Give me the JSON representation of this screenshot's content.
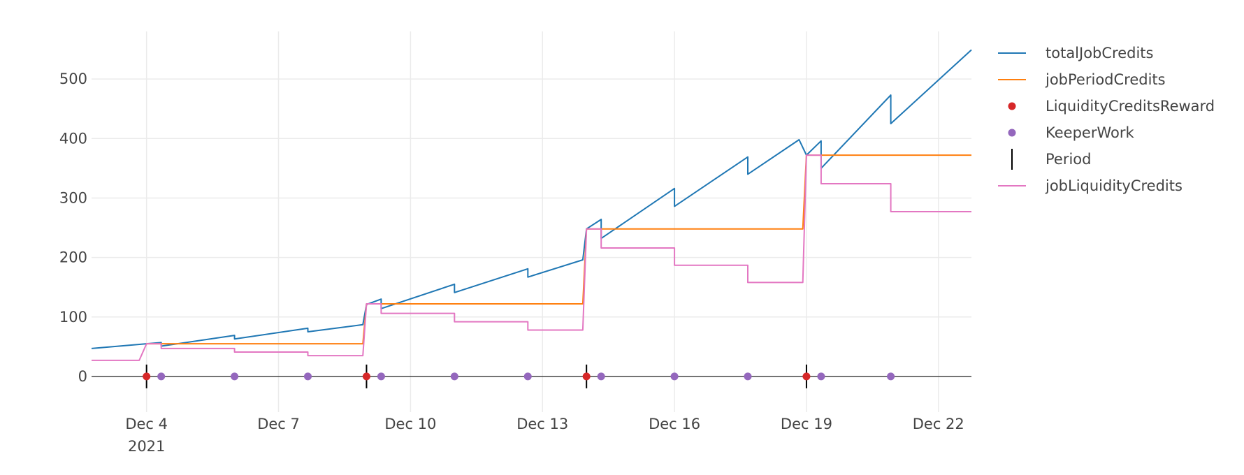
{
  "chart_data": {
    "type": "line",
    "x_axis": {
      "type": "date",
      "range": [
        "2021-12-02T18:00",
        "2021-12-22T18:00"
      ],
      "tick_values": [
        "2021-12-04",
        "2021-12-07",
        "2021-12-10",
        "2021-12-13",
        "2021-12-16",
        "2021-12-19",
        "2021-12-22"
      ],
      "tick_labels": [
        "Dec 4",
        "Dec 7",
        "Dec 10",
        "Dec 13",
        "Dec 16",
        "Dec 19",
        "Dec 22"
      ],
      "year_label": "2021",
      "grid": true
    },
    "y_axis": {
      "range": [
        -60,
        580
      ],
      "tick_values": [
        0,
        100,
        200,
        300,
        400,
        500
      ],
      "tick_labels": [
        "0",
        "100",
        "200",
        "300",
        "400",
        "500"
      ],
      "grid": true
    },
    "legend_position": "right",
    "series": [
      {
        "name": "totalJobCredits",
        "kind": "line",
        "color": "#1f77b4",
        "points": [
          [
            "2021-12-02T18:00",
            47
          ],
          [
            "2021-12-04T00:00",
            55
          ],
          [
            "2021-12-04T08:00",
            57
          ],
          [
            "2021-12-04T08:00",
            51
          ],
          [
            "2021-12-06T00:00",
            69
          ],
          [
            "2021-12-06T00:00",
            63
          ],
          [
            "2021-12-07T16:00",
            81
          ],
          [
            "2021-12-07T16:00",
            75
          ],
          [
            "2021-12-08T22:00",
            87
          ],
          [
            "2021-12-09T00:00",
            121
          ],
          [
            "2021-12-09T08:00",
            130
          ],
          [
            "2021-12-09T08:00",
            114
          ],
          [
            "2021-12-11T00:00",
            155
          ],
          [
            "2021-12-11T00:00",
            141
          ],
          [
            "2021-12-12T16:00",
            181
          ],
          [
            "2021-12-12T16:00",
            167
          ],
          [
            "2021-12-13T22:00",
            196
          ],
          [
            "2021-12-14T00:00",
            248
          ],
          [
            "2021-12-14T08:00",
            264
          ],
          [
            "2021-12-14T08:00",
            232
          ],
          [
            "2021-12-16T00:00",
            316
          ],
          [
            "2021-12-16T00:00",
            286
          ],
          [
            "2021-12-17T16:00",
            369
          ],
          [
            "2021-12-17T16:00",
            340
          ],
          [
            "2021-12-18T20:00",
            398
          ],
          [
            "2021-12-19T00:00",
            372
          ],
          [
            "2021-12-19T08:00",
            396
          ],
          [
            "2021-12-19T08:00",
            350
          ],
          [
            "2021-12-20T22:00",
            473
          ],
          [
            "2021-12-20T22:00",
            425
          ],
          [
            "2021-12-22T18:00",
            549
          ]
        ]
      },
      {
        "name": "jobPeriodCredits",
        "kind": "line",
        "color": "#ff7f0e",
        "points": [
          [
            "2021-12-04T00:00",
            55
          ],
          [
            "2021-12-08T22:00",
            55
          ],
          [
            "2021-12-09T00:00",
            122
          ],
          [
            "2021-12-13T22:00",
            122
          ],
          [
            "2021-12-14T00:00",
            248
          ],
          [
            "2021-12-18T22:00",
            248
          ],
          [
            "2021-12-19T00:00",
            372
          ],
          [
            "2021-12-22T18:00",
            372
          ]
        ]
      },
      {
        "name": "LiquidityCreditsReward",
        "kind": "markers",
        "color": "#d62728",
        "points": [
          [
            "2021-12-04T00:00",
            0
          ],
          [
            "2021-12-09T00:00",
            0
          ],
          [
            "2021-12-14T00:00",
            0
          ],
          [
            "2021-12-19T00:00",
            0
          ]
        ]
      },
      {
        "name": "KeeperWork",
        "kind": "markers",
        "color": "#9467bd",
        "points": [
          [
            "2021-12-04T08:00",
            0
          ],
          [
            "2021-12-06T00:00",
            0
          ],
          [
            "2021-12-07T16:00",
            0
          ],
          [
            "2021-12-09T08:00",
            0
          ],
          [
            "2021-12-11T00:00",
            0
          ],
          [
            "2021-12-12T16:00",
            0
          ],
          [
            "2021-12-14T08:00",
            0
          ],
          [
            "2021-12-16T00:00",
            0
          ],
          [
            "2021-12-17T16:00",
            0
          ],
          [
            "2021-12-19T08:00",
            0
          ],
          [
            "2021-12-20T22:00",
            0
          ]
        ]
      },
      {
        "name": "Period",
        "kind": "vline-markers",
        "color": "#000000",
        "points": [
          [
            "2021-12-04T00:00",
            0
          ],
          [
            "2021-12-09T00:00",
            0
          ],
          [
            "2021-12-14T00:00",
            0
          ],
          [
            "2021-12-19T00:00",
            0
          ]
        ]
      },
      {
        "name": "jobLiquidityCredits",
        "kind": "line",
        "color": "#e377c2",
        "points": [
          [
            "2021-12-02T18:00",
            27
          ],
          [
            "2021-12-03T20:00",
            27
          ],
          [
            "2021-12-04T00:00",
            55
          ],
          [
            "2021-12-04T08:00",
            55
          ],
          [
            "2021-12-04T08:00",
            47
          ],
          [
            "2021-12-06T00:00",
            47
          ],
          [
            "2021-12-06T00:00",
            41
          ],
          [
            "2021-12-07T16:00",
            41
          ],
          [
            "2021-12-07T16:00",
            35
          ],
          [
            "2021-12-08T22:00",
            35
          ],
          [
            "2021-12-09T00:00",
            122
          ],
          [
            "2021-12-09T08:00",
            122
          ],
          [
            "2021-12-09T08:00",
            106
          ],
          [
            "2021-12-11T00:00",
            106
          ],
          [
            "2021-12-11T00:00",
            92
          ],
          [
            "2021-12-12T16:00",
            92
          ],
          [
            "2021-12-12T16:00",
            78
          ],
          [
            "2021-12-13T22:00",
            78
          ],
          [
            "2021-12-14T00:00",
            248
          ],
          [
            "2021-12-14T08:00",
            248
          ],
          [
            "2021-12-14T08:00",
            216
          ],
          [
            "2021-12-16T00:00",
            216
          ],
          [
            "2021-12-16T00:00",
            187
          ],
          [
            "2021-12-17T16:00",
            187
          ],
          [
            "2021-12-17T16:00",
            158
          ],
          [
            "2021-12-18T22:00",
            158
          ],
          [
            "2021-12-19T00:00",
            372
          ],
          [
            "2021-12-19T08:00",
            372
          ],
          [
            "2021-12-19T08:00",
            324
          ],
          [
            "2021-12-20T22:00",
            324
          ],
          [
            "2021-12-20T22:00",
            277
          ],
          [
            "2021-12-22T18:00",
            277
          ]
        ]
      }
    ]
  }
}
